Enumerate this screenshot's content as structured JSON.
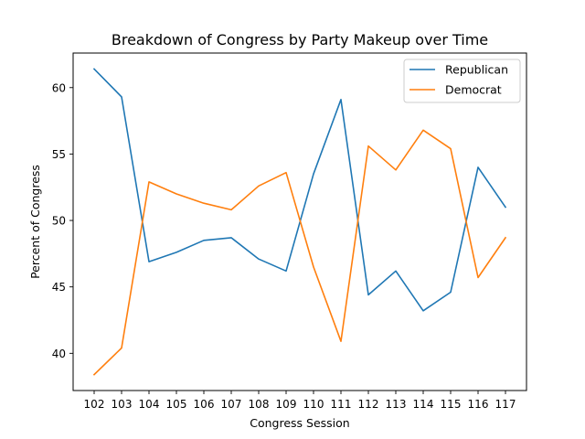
{
  "chart_data": {
    "type": "line",
    "title": "Breakdown of Congress by Party Makeup over Time",
    "xlabel": "Congress Session",
    "ylabel": "Percent of Congress",
    "categories": [
      "102",
      "103",
      "104",
      "105",
      "106",
      "107",
      "108",
      "109",
      "110",
      "111",
      "112",
      "113",
      "114",
      "115",
      "116",
      "117"
    ],
    "ylim": [
      37.2,
      62.6
    ],
    "yticks": [
      40,
      45,
      50,
      55,
      60
    ],
    "grid": false,
    "legend_position": "top-right",
    "series": [
      {
        "name": "Republican",
        "color": "#1f77b4",
        "values": [
          61.4,
          59.3,
          46.9,
          47.6,
          48.5,
          48.7,
          47.1,
          46.2,
          53.5,
          59.1,
          44.4,
          46.2,
          43.2,
          44.6,
          54.0,
          51.0
        ]
      },
      {
        "name": "Democrat",
        "color": "#ff7f0e",
        "values": [
          38.4,
          40.4,
          52.9,
          52.0,
          51.3,
          50.8,
          52.6,
          53.6,
          46.5,
          40.9,
          55.6,
          53.8,
          56.8,
          55.4,
          45.7,
          48.7
        ]
      }
    ]
  }
}
